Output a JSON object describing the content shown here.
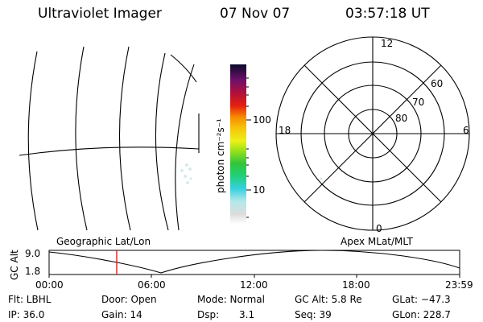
{
  "header": {
    "instrument": "Ultraviolet Imager",
    "date": "07 Nov 07",
    "time": "03:57:18 UT"
  },
  "colorbar": {
    "label": "photon cm⁻²s⁻¹",
    "ticks": [
      "100",
      "10"
    ]
  },
  "polar_plot": {
    "mlt_labels": {
      "top": "12",
      "left": "18",
      "right": "6",
      "bottom": "0"
    },
    "lat_labels": [
      "60",
      "70",
      "80"
    ]
  },
  "panel_titles": {
    "left": "Geographic Lat/Lon",
    "right": "Apex MLat/MLT"
  },
  "altitude_strip": {
    "axis_label": "GC Alt",
    "y_ticks": [
      "9.0",
      "1.8"
    ],
    "x_ticks": [
      "00:00",
      "06:00",
      "12:00",
      "18:00",
      "23:59"
    ],
    "current_marker_color": "#ff0000"
  },
  "status": {
    "flt": "Flt: LBHL",
    "ip": "IP: 36.0",
    "door": "Door: Open",
    "gain": "Gain: 14",
    "mode": "Mode:  Normal",
    "dsp_label": "Dsp:",
    "dsp_value": "3.1",
    "gcalt": "GC Alt: 5.8 Re",
    "seq": "Seq: 39",
    "glat": "GLat:  −47.3",
    "glon": "GLon: 228.7"
  }
}
